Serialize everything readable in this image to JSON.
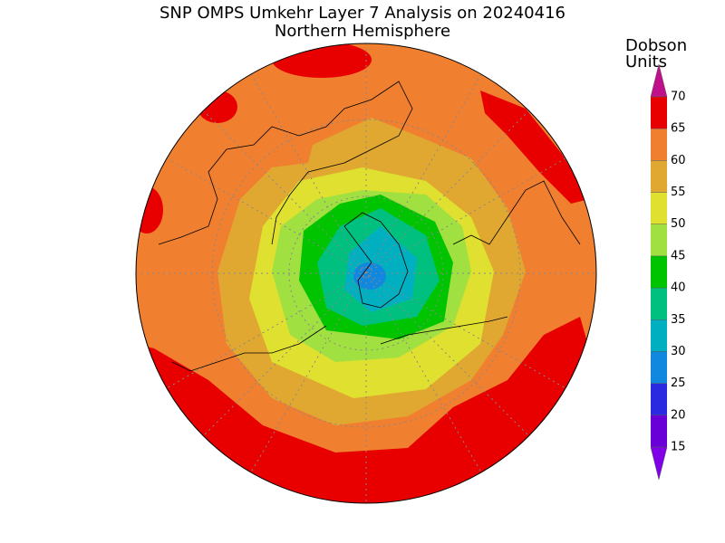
{
  "title": "SNP OMPS Umkehr Layer 7 Analysis on 20240416",
  "subtitle": "Northern Hemisphere",
  "colorbar": {
    "label": [
      "Dobson",
      "Units"
    ],
    "ticks": [
      15,
      20,
      25,
      30,
      35,
      40,
      45,
      50,
      55,
      60,
      65,
      70
    ],
    "colors": [
      "#8000e8",
      "#6a00d8",
      "#2a2ae0",
      "#1088e0",
      "#00b0c0",
      "#00c080",
      "#00c400",
      "#a0e040",
      "#e0e030",
      "#e0a830",
      "#f08030",
      "#e80000",
      "#c0108a"
    ]
  }
}
